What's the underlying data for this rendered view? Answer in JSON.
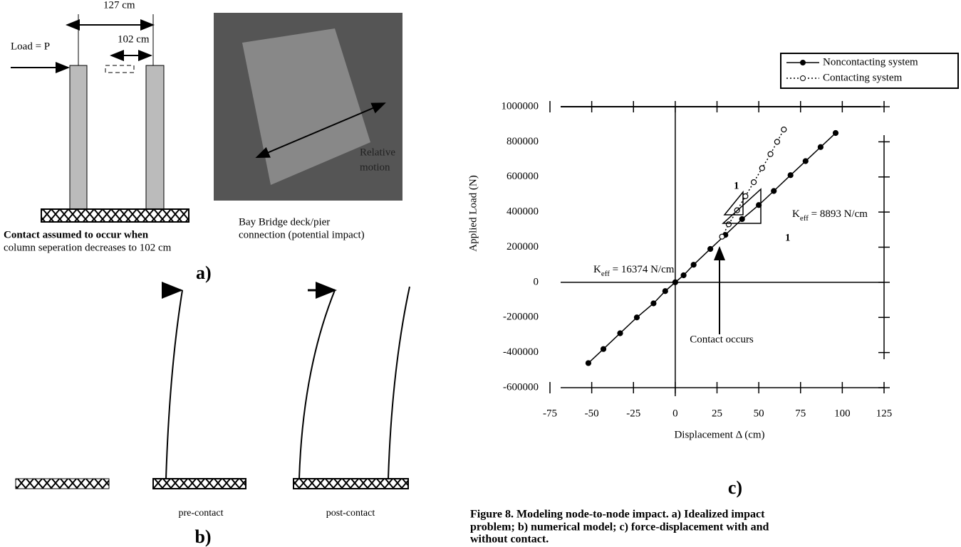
{
  "figure": {
    "panel_a": {
      "width_label": "127 cm",
      "gap_label": "102 cm",
      "load_label": "Load = P",
      "photo_label": [
        "Relative",
        "motion"
      ],
      "left_caption": [
        "Contact assumed to occur when",
        "column seperation decreases to 102 cm"
      ],
      "right_caption": [
        "Bay Bridge deck/pier",
        "connection (potential impact)"
      ],
      "label": "a)"
    },
    "panel_b": {
      "labels": [
        "pre-contact",
        "post-contact"
      ],
      "label": "b)"
    },
    "panel_c_label": "c)",
    "caption": [
      "Figure 8. Modeling node-to-node impact. a) Idealized impact",
      "problem; b) numerical model; c) force-displacement with and",
      "without contact."
    ]
  },
  "chart_data": {
    "type": "line",
    "xlabel": "Displacement Δ (cm)",
    "ylabel": "Applied Load (N)",
    "xlim": [
      -75,
      125
    ],
    "ylim": [
      -600000,
      1000000
    ],
    "xticks": [
      -75,
      -50,
      -25,
      0,
      25,
      50,
      75,
      100,
      125
    ],
    "yticks": [
      -600000,
      -400000,
      -200000,
      0,
      200000,
      400000,
      600000,
      800000,
      1000000
    ],
    "grid": false,
    "legend": "upper right",
    "series": [
      {
        "name": "Noncontacting system",
        "color": "#000000",
        "marker": "filled",
        "linestyle": "solid",
        "x": [
          -52,
          -43,
          -33,
          -23,
          -13,
          -6,
          0,
          5,
          11,
          21,
          30,
          40,
          50,
          59,
          69,
          78,
          87,
          96
        ],
        "values": [
          -460000,
          -380000,
          -290000,
          -200000,
          -120000,
          -50000,
          0,
          40000,
          100000,
          190000,
          270000,
          360000,
          440000,
          520000,
          610000,
          690000,
          770000,
          850000
        ]
      },
      {
        "name": "Contacting system",
        "color": "#000000",
        "marker": "open",
        "linestyle": "dotted",
        "x": [
          28,
          32,
          37,
          42,
          47,
          52,
          57,
          61,
          65
        ],
        "values": [
          260000,
          330000,
          410000,
          490000,
          570000,
          650000,
          730000,
          800000,
          870000
        ]
      }
    ],
    "annotations": {
      "keff_contact": [
        "K",
        "eff",
        " = 16374 N/cm"
      ],
      "keff_noncontact": [
        "K",
        "eff",
        " = 8893 N/cm"
      ],
      "slope_one": [
        "1",
        "1"
      ],
      "contact": "Contact occurs"
    }
  }
}
